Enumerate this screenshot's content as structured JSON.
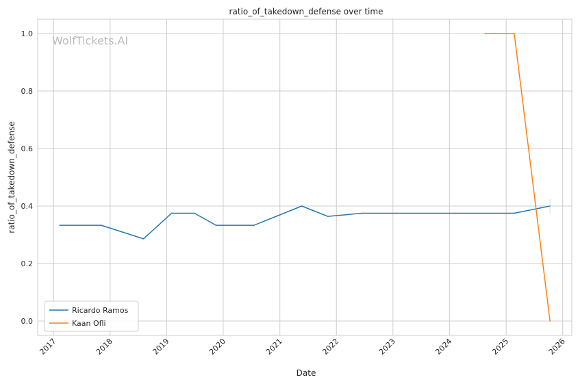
{
  "chart_data": {
    "type": "line",
    "title": "ratio_of_takedown_defense over time",
    "xlabel": "Date",
    "ylabel": "ratio_of_takedown_defense",
    "watermark": "WolfTickets.AI",
    "grid": true,
    "legend_position": "lower-left",
    "x_ticks": [
      "2017",
      "2018",
      "2019",
      "2020",
      "2021",
      "2022",
      "2023",
      "2024",
      "2025",
      "2026"
    ],
    "y_ticks": [
      "0.0",
      "0.2",
      "0.4",
      "0.6",
      "0.8",
      "1.0"
    ],
    "xlim": [
      "2016-09-20",
      "2026-03-01"
    ],
    "ylim": [
      -0.05,
      1.05
    ],
    "series": [
      {
        "name": "Ricardo Ramos",
        "color": "#1f77b4",
        "points": [
          {
            "x": "2017-02-10",
            "y": 0.333
          },
          {
            "x": "2017-11-05",
            "y": 0.333
          },
          {
            "x": "2018-08-04",
            "y": 0.286
          },
          {
            "x": "2019-02-02",
            "y": 0.375
          },
          {
            "x": "2019-06-29",
            "y": 0.375
          },
          {
            "x": "2019-11-16",
            "y": 0.333
          },
          {
            "x": "2020-07-18",
            "y": 0.333
          },
          {
            "x": "2021-05-22",
            "y": 0.4
          },
          {
            "x": "2021-11-06",
            "y": 0.364
          },
          {
            "x": "2022-06-18",
            "y": 0.375
          },
          {
            "x": "2025-02-22",
            "y": 0.375
          },
          {
            "x": "2025-10-11",
            "y": 0.4
          }
        ]
      },
      {
        "name": "Kaan Ofli",
        "color": "#ff7f0e",
        "points": [
          {
            "x": "2024-08-17",
            "y": 1.0
          },
          {
            "x": "2025-02-22",
            "y": 1.0
          },
          {
            "x": "2025-10-11",
            "y": 0.0
          }
        ]
      }
    ]
  }
}
